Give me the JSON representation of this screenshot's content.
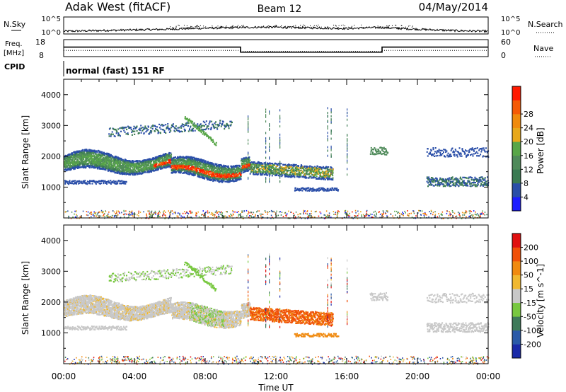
{
  "header": {
    "station": "Adak West (fitACF)",
    "beam": "Beam 12",
    "date": "04/May/2014"
  },
  "top_panels": {
    "nsky_label": "N.Sky",
    "nsky_ticks": [
      "10^5",
      "10^0"
    ],
    "nsearch_label": "N.Search",
    "nsearch_ticks": [
      "10^5",
      "10^0"
    ],
    "freq_label_line1": "Freq.",
    "freq_label_line2": "[MHz]",
    "freq_ticks": [
      "18",
      "8"
    ],
    "nave_label": "Nave",
    "nave_ticks": [
      "60",
      "0"
    ],
    "cpid_label": "CPID",
    "cpid_text": "normal (fast) 151 RF"
  },
  "colors": {
    "power": [
      "#1c1cff",
      "#2a4ea8",
      "#3a7a52",
      "#4f8a5a",
      "#58a648",
      "#e8a81a",
      "#f08a0c",
      "#f55a05",
      "#ff1a00"
    ],
    "velocity": [
      "#1a2aa8",
      "#2a5aa8",
      "#3e7a5a",
      "#78c840",
      "#c8c8c8",
      "#f0b830",
      "#f08a10",
      "#f05008",
      "#e01010"
    ]
  },
  "chart_data": [
    {
      "type": "line",
      "name": "N.Sky / N.Search",
      "x": [
        "00:00",
        "01:00",
        "02:00",
        "03:00",
        "04:00",
        "05:00",
        "06:00",
        "07:00",
        "08:00",
        "09:00",
        "10:00",
        "11:00",
        "12:00",
        "13:00",
        "14:00",
        "15:00",
        "16:00",
        "17:00",
        "18:00",
        "19:00",
        "20:00",
        "21:00",
        "22:00",
        "23:00",
        "24:00"
      ],
      "y_log10": [
        0.8,
        0.9,
        1.0,
        1.1,
        1.2,
        1.3,
        1.4,
        1.6,
        1.7,
        1.8,
        1.9,
        2.0,
        2.0,
        1.9,
        1.8,
        1.7,
        1.6,
        1.8,
        1.9,
        1.6,
        1.4,
        1.2,
        1.0,
        0.9,
        0.8
      ],
      "ylim": [
        0,
        5
      ]
    },
    {
      "type": "line",
      "name": "Freq. / Nave",
      "freq_ylim": [
        8,
        18
      ],
      "nave_ylim": [
        0,
        60
      ],
      "freq_steps": [
        {
          "from": "00:00",
          "to": "10:00",
          "freq": 13.6
        },
        {
          "from": "10:00",
          "to": "18:00",
          "freq": 10.6
        },
        {
          "from": "18:00",
          "to": "24:00",
          "freq": 13.6
        }
      ],
      "nave_steps": [
        {
          "from": "00:00",
          "to": "10:00",
          "nave": 22
        },
        {
          "from": "10:00",
          "to": "18:00",
          "nave": 18
        },
        {
          "from": "18:00",
          "to": "24:00",
          "nave": 22
        }
      ]
    },
    {
      "type": "heatmap",
      "name": "Power",
      "ylabel": "Slant Range [km]",
      "ylim": [
        0,
        4500
      ],
      "yticks": [
        "1000",
        "2000",
        "3000",
        "4000"
      ],
      "colorbar_label": "Power [dB]",
      "colorbar_ticks": [
        "4",
        "8",
        "12",
        "16",
        "20",
        "24",
        "28"
      ],
      "colorbar_range": [
        0,
        32
      ]
    },
    {
      "type": "heatmap",
      "name": "Velocity",
      "ylabel": "Slant Range [km]",
      "ylim": [
        0,
        4500
      ],
      "yticks": [
        "1000",
        "2000",
        "3000",
        "4000"
      ],
      "colorbar_label": "Velocity [m s^-1]",
      "colorbar_ticks": [
        "200",
        "100",
        "50",
        "15",
        "-15",
        "-50",
        "-100",
        "-200"
      ],
      "xlabel": "Time UT",
      "xticks": [
        "00:00",
        "04:00",
        "08:00",
        "12:00",
        "16:00",
        "20:00",
        "00:00"
      ],
      "xlim_hours": [
        0,
        24
      ]
    }
  ]
}
